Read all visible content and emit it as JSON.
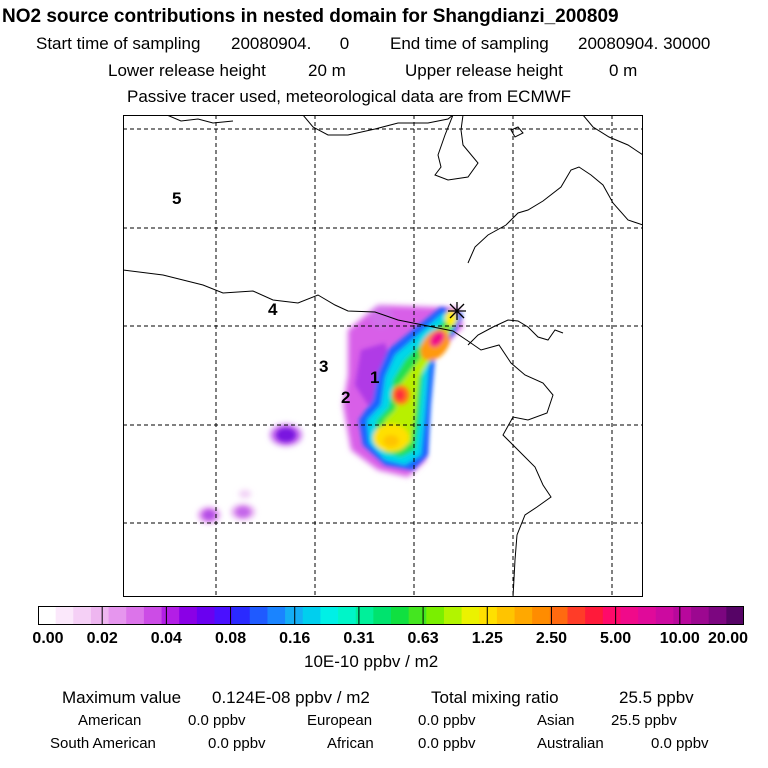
{
  "header": {
    "title": "NO2 source contributions in nested domain for Shangdianzi_200809",
    "start_label": "Start time of sampling",
    "start_value": "20080904.      0",
    "end_label": "End time of sampling",
    "end_value": "20080904. 30000",
    "lower_label": "Lower release height",
    "lower_value": "20 m",
    "upper_label": "Upper release height",
    "upper_value": "0 m",
    "tracer_note": "Passive tracer used, meteorological data are from ECMWF"
  },
  "map": {
    "region_labels": [
      "5",
      "4",
      "3",
      "1",
      "2"
    ],
    "site_marker": "station-star-icon"
  },
  "colorbar": {
    "ticks": [
      "0.00",
      "0.02",
      "0.04",
      "0.08",
      "0.16",
      "0.31",
      "0.63",
      "1.25",
      "2.50",
      "5.00",
      "10.00",
      "20.00"
    ],
    "units": "10E-10 ppbv / m2",
    "colors": [
      "#ffffff",
      "#fbe8fb",
      "#f5d0f6",
      "#eeb6f0",
      "#e696ee",
      "#dc74ea",
      "#cc4ce6",
      "#b31ee6",
      "#8a00e6",
      "#6a00f0",
      "#4a10ff",
      "#2a2aff",
      "#1f5aff",
      "#1a84ff",
      "#14aef5",
      "#00cfee",
      "#00f0e6",
      "#00f5c8",
      "#00f09a",
      "#00e36e",
      "#10e040",
      "#44e620",
      "#7aef00",
      "#b2f400",
      "#ebf200",
      "#ffe000",
      "#ffc400",
      "#ffa800",
      "#ff8c00",
      "#ff6a10",
      "#ff3c28",
      "#ff1a3a",
      "#ff0a6a",
      "#f00a8a",
      "#e00a9a",
      "#cc0aa0",
      "#b8089c",
      "#9c0890",
      "#7c0680",
      "#560466"
    ]
  },
  "stats": {
    "max_label": "Maximum value",
    "max_value": "0.124E-08 ppbv / m2",
    "total_label": "Total mixing ratio",
    "total_value": "25.5 ppbv",
    "american_label": "American",
    "american_value": "0.0 ppbv",
    "european_label": "European",
    "european_value": "0.0 ppbv",
    "asian_label": "Asian",
    "asian_value": "25.5 ppbv",
    "south_american_label": "South American",
    "south_american_value": "0.0 ppbv",
    "african_label": "African",
    "african_value": "0.0 ppbv",
    "australian_label": "Australian",
    "australian_value": "0.0 ppbv"
  }
}
